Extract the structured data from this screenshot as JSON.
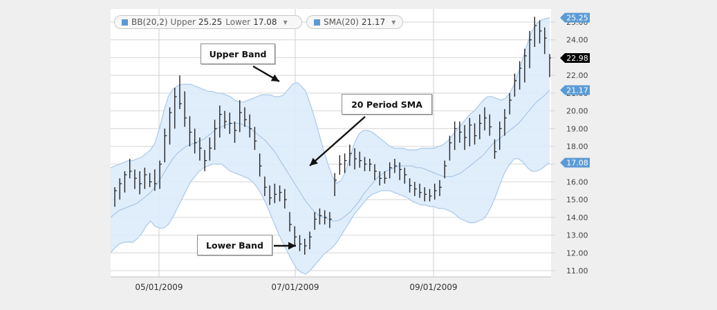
{
  "legend": {
    "bb": {
      "label": "BB(20,2)",
      "upper_label": "Upper",
      "upper_value": "25.25",
      "lower_label": "Lower",
      "lower_value": "17.08",
      "dropdown_icon": "chevron-down-icon"
    },
    "sma": {
      "label": "SMA(20)",
      "value": "21.17",
      "dropdown_icon": "chevron-down-icon"
    }
  },
  "annotations": {
    "upper_band": "Upper Band",
    "sma": "20 Period SMA",
    "lower_band": "Lower Band"
  },
  "badges": {
    "upper": "25.25",
    "price": "22.98",
    "sma": "21.17",
    "lower": "17.08"
  },
  "colors": {
    "band_fill": "#ddebfb",
    "band_line": "#a9c9e8",
    "sma_line": "#9bbfe2",
    "price_bar": "#222222",
    "badge_blue": "#5b9bd5",
    "badge_black": "#000000"
  },
  "chart_data": {
    "type": "line",
    "x_tick_labels": [
      "05/01/2009",
      "07/01/2009",
      "09/01/2009"
    ],
    "y_tick_labels": [
      "11.00",
      "12.00",
      "13.00",
      "14.00",
      "15.00",
      "16.00",
      "17.00",
      "18.00",
      "19.00",
      "20.00",
      "21.00",
      "22.00",
      "23.00",
      "24.00",
      "25.00"
    ],
    "ylim": [
      10.6,
      25.8
    ],
    "grid": true,
    "bands": {
      "upper": [
        16.8,
        16.9,
        17.0,
        17.1,
        17.2,
        17.2,
        17.3,
        17.4,
        17.6,
        17.8,
        18.2,
        19.0,
        20.0,
        20.8,
        21.2,
        21.4,
        21.5,
        21.5,
        21.5,
        21.4,
        21.3,
        21.2,
        21.1,
        21.1,
        21.0,
        21.0,
        20.9,
        20.8,
        20.6,
        20.5,
        20.5,
        20.6,
        20.7,
        20.8,
        20.9,
        20.9,
        20.9,
        20.8,
        20.8,
        20.9,
        21.2,
        21.5,
        21.6,
        21.4,
        21.1,
        20.4,
        19.6,
        18.7,
        17.8,
        17.0,
        16.3,
        15.9,
        16.1,
        16.6,
        17.4,
        18.2,
        18.7,
        18.9,
        18.9,
        18.8,
        18.6,
        18.4,
        18.2,
        18.0,
        17.9,
        17.9,
        17.9,
        17.8,
        17.8,
        17.8,
        17.9,
        17.9,
        17.9,
        17.9,
        18.0,
        18.1,
        18.3,
        18.6,
        18.9,
        19.2,
        19.5,
        19.8,
        20.0,
        20.3,
        20.6,
        20.8,
        20.8,
        20.7,
        20.6,
        20.7,
        21.0,
        21.5,
        22.2,
        23.0,
        23.8,
        24.5,
        24.9,
        25.1,
        25.2,
        25.25
      ],
      "sma": [
        14.0,
        14.2,
        14.4,
        14.5,
        14.6,
        14.7,
        14.8,
        15.0,
        15.2,
        15.4,
        15.7,
        16.1,
        16.5,
        16.9,
        17.3,
        17.6,
        17.8,
        18.0,
        18.1,
        18.2,
        18.3,
        18.4,
        18.6,
        18.8,
        19.0,
        19.1,
        19.2,
        19.3,
        19.3,
        19.3,
        19.2,
        19.1,
        18.9,
        18.7,
        18.5,
        18.3,
        18.0,
        17.7,
        17.3,
        16.9,
        16.5,
        16.1,
        15.7,
        15.3,
        14.9,
        14.6,
        14.3,
        14.1,
        14.0,
        13.9,
        13.8,
        13.8,
        13.9,
        14.1,
        14.3,
        14.6,
        14.9,
        15.3,
        15.6,
        15.9,
        16.2,
        16.4,
        16.6,
        16.7,
        16.8,
        16.9,
        16.9,
        16.9,
        16.9,
        16.8,
        16.8,
        16.7,
        16.6,
        16.5,
        16.4,
        16.3,
        16.3,
        16.3,
        16.4,
        16.5,
        16.7,
        16.9,
        17.1,
        17.3,
        17.5,
        17.8,
        18.1,
        18.3,
        18.5,
        18.7,
        18.9,
        19.1,
        19.3,
        19.6,
        19.9,
        20.2,
        20.5,
        20.7,
        20.9,
        21.17
      ],
      "lower": [
        12.0,
        12.3,
        12.5,
        12.6,
        12.6,
        12.6,
        12.8,
        13.1,
        13.5,
        13.8,
        13.5,
        13.4,
        13.4,
        13.6,
        14.0,
        14.5,
        15.0,
        15.5,
        16.0,
        16.3,
        16.6,
        16.8,
        16.9,
        17.0,
        17.0,
        17.0,
        16.8,
        16.6,
        16.5,
        16.4,
        16.3,
        16.2,
        16.0,
        15.7,
        15.3,
        14.8,
        14.2,
        13.6,
        13.0,
        12.5,
        12.0,
        11.5,
        11.1,
        10.9,
        10.8,
        11.0,
        11.3,
        11.6,
        11.9,
        12.1,
        12.3,
        12.6,
        13.0,
        13.4,
        13.8,
        14.2,
        14.5,
        14.8,
        15.1,
        15.3,
        15.4,
        15.5,
        15.5,
        15.5,
        15.4,
        15.3,
        15.2,
        15.1,
        14.9,
        14.8,
        14.7,
        14.7,
        14.6,
        14.6,
        14.5,
        14.5,
        14.4,
        14.3,
        14.1,
        13.9,
        13.8,
        13.7,
        13.7,
        13.8,
        13.9,
        14.2,
        14.7,
        15.3,
        16.0,
        16.6,
        17.0,
        17.3,
        17.3,
        17.1,
        16.8,
        16.6,
        16.6,
        16.7,
        16.9,
        17.08
      ]
    },
    "price_bars": [
      [
        14.6,
        15.7,
        15.5
      ],
      [
        15.0,
        16.2,
        15.9
      ],
      [
        15.4,
        16.6,
        16.4
      ],
      [
        16.2,
        17.3,
        16.6
      ],
      [
        15.6,
        16.7,
        16.2
      ],
      [
        15.3,
        16.6,
        15.9
      ],
      [
        15.6,
        16.8,
        16.4
      ],
      [
        15.7,
        16.5,
        16.0
      ],
      [
        15.5,
        16.7,
        15.9
      ],
      [
        15.6,
        17.2,
        17.0
      ],
      [
        17.1,
        19.0,
        18.6
      ],
      [
        18.1,
        20.2,
        19.9
      ],
      [
        19.0,
        21.3,
        20.8
      ],
      [
        20.1,
        22.0,
        20.4
      ],
      [
        19.1,
        21.1,
        19.6
      ],
      [
        18.0,
        19.7,
        18.8
      ],
      [
        17.6,
        19.0,
        18.2
      ],
      [
        17.2,
        18.5,
        17.9
      ],
      [
        16.6,
        17.8,
        17.2
      ],
      [
        17.2,
        18.5,
        17.9
      ],
      [
        17.8,
        19.5,
        19.0
      ],
      [
        18.5,
        20.3,
        19.8
      ],
      [
        19.0,
        20.0,
        19.4
      ],
      [
        18.7,
        19.9,
        19.3
      ],
      [
        18.2,
        19.4,
        18.9
      ],
      [
        18.8,
        20.6,
        19.9
      ],
      [
        19.1,
        20.2,
        19.5
      ],
      [
        18.5,
        19.8,
        19.0
      ],
      [
        17.8,
        19.1,
        18.3
      ],
      [
        16.3,
        17.6,
        16.9
      ],
      [
        15.2,
        16.3,
        15.7
      ],
      [
        14.7,
        15.8,
        15.1
      ],
      [
        14.8,
        15.9,
        15.3
      ],
      [
        14.9,
        15.8,
        15.4
      ],
      [
        14.5,
        15.6,
        15.0
      ],
      [
        13.2,
        14.3,
        13.6
      ],
      [
        12.4,
        13.5,
        12.9
      ],
      [
        12.1,
        13.0,
        12.5
      ],
      [
        11.9,
        12.8,
        12.4
      ],
      [
        12.2,
        13.2,
        12.9
      ],
      [
        13.3,
        14.3,
        13.9
      ],
      [
        13.6,
        14.5,
        14.1
      ],
      [
        13.6,
        14.4,
        14.0
      ],
      [
        13.4,
        14.3,
        13.9
      ],
      [
        15.2,
        16.5,
        16.1
      ],
      [
        16.4,
        17.5,
        17.0
      ],
      [
        16.5,
        17.6,
        17.2
      ],
      [
        16.9,
        18.1,
        17.6
      ],
      [
        16.7,
        17.9,
        17.3
      ],
      [
        16.8,
        17.7,
        17.2
      ],
      [
        16.6,
        17.4,
        17.0
      ],
      [
        16.6,
        17.3,
        17.0
      ],
      [
        16.1,
        17.0,
        16.6
      ],
      [
        15.8,
        16.6,
        16.2
      ],
      [
        15.9,
        16.6,
        16.2
      ],
      [
        16.2,
        17.1,
        16.8
      ],
      [
        16.5,
        17.3,
        16.9
      ],
      [
        16.1,
        17.1,
        16.7
      ],
      [
        15.9,
        16.8,
        16.4
      ],
      [
        15.4,
        16.2,
        15.8
      ],
      [
        15.2,
        16.0,
        15.6
      ],
      [
        15.1,
        15.9,
        15.4
      ],
      [
        14.9,
        15.7,
        15.3
      ],
      [
        14.9,
        15.6,
        15.2
      ],
      [
        15.0,
        15.9,
        15.5
      ],
      [
        15.2,
        16.1,
        15.7
      ],
      [
        16.2,
        17.2,
        16.9
      ],
      [
        17.2,
        18.6,
        18.2
      ],
      [
        17.8,
        19.4,
        19.0
      ],
      [
        18.2,
        19.4,
        18.8
      ],
      [
        17.8,
        19.2,
        18.5
      ],
      [
        18.0,
        19.6,
        19.2
      ],
      [
        18.1,
        19.3,
        18.6
      ],
      [
        18.4,
        19.8,
        19.3
      ],
      [
        18.9,
        20.2,
        19.6
      ],
      [
        18.6,
        19.8,
        19.1
      ],
      [
        17.3,
        18.4,
        17.7
      ],
      [
        17.8,
        19.4,
        19.0
      ],
      [
        18.6,
        20.1,
        19.6
      ],
      [
        19.8,
        21.0,
        20.6
      ],
      [
        20.8,
        22.1,
        21.7
      ],
      [
        21.2,
        22.8,
        22.4
      ],
      [
        21.6,
        23.5,
        23.1
      ],
      [
        22.4,
        24.5,
        24.0
      ],
      [
        23.6,
        25.3,
        24.8
      ],
      [
        23.8,
        25.1,
        24.5
      ],
      [
        23.2,
        24.7,
        24.1
      ],
      [
        21.9,
        23.2,
        22.98
      ]
    ]
  }
}
